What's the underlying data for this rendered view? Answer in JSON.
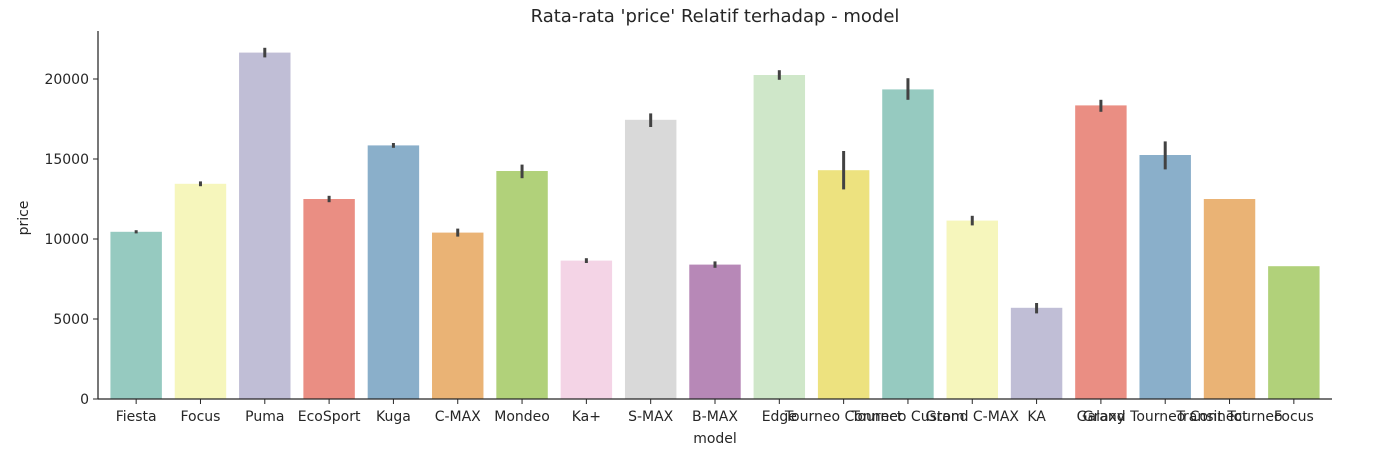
{
  "chart_data": {
    "type": "bar",
    "title": "Rata-rata 'price' Relatif terhadap - model",
    "xlabel": "model",
    "ylabel": "price",
    "ylim": [
      0,
      23000
    ],
    "yticks": [
      0,
      5000,
      10000,
      15000,
      20000
    ],
    "grid": false,
    "categories": [
      "Fiesta",
      "Focus",
      "Puma",
      "EcoSport",
      "Kuga",
      "C-MAX",
      "Mondeo",
      "Ka+",
      "S-MAX",
      "B-MAX",
      "Edge",
      "Tourneo Connect",
      "Tourneo Custom",
      "Grand C-MAX",
      "KA",
      "Galaxy",
      "Grand Tourneo Connect",
      "Transit Tourneo",
      "Focus"
    ],
    "values": [
      10450,
      13450,
      21650,
      12500,
      15850,
      10400,
      14250,
      8650,
      17450,
      8400,
      20250,
      14300,
      19350,
      11150,
      5700,
      18350,
      15250,
      12500,
      8300
    ],
    "error_low": [
      10350,
      13300,
      21350,
      12300,
      15700,
      10150,
      13800,
      8500,
      17000,
      8200,
      19950,
      13100,
      18700,
      10850,
      5350,
      17950,
      14350,
      12500,
      8300
    ],
    "error_high": [
      10550,
      13600,
      21950,
      12700,
      16000,
      10650,
      14650,
      8800,
      17850,
      8600,
      20550,
      15500,
      20050,
      11450,
      6000,
      18700,
      16100,
      12500,
      8300
    ],
    "colors": [
      "#96cac0",
      "#f6f6bc",
      "#c0bed6",
      "#ea8e83",
      "#8aafca",
      "#eab375",
      "#b1d17a",
      "#f4d4e6",
      "#d9d9d9",
      "#b788b7",
      "#cfe7c9",
      "#ede27f",
      "#96cac0",
      "#f6f6bc",
      "#c0bed6",
      "#ea8e83",
      "#8aafca",
      "#eab375",
      "#b1d17a"
    ]
  }
}
